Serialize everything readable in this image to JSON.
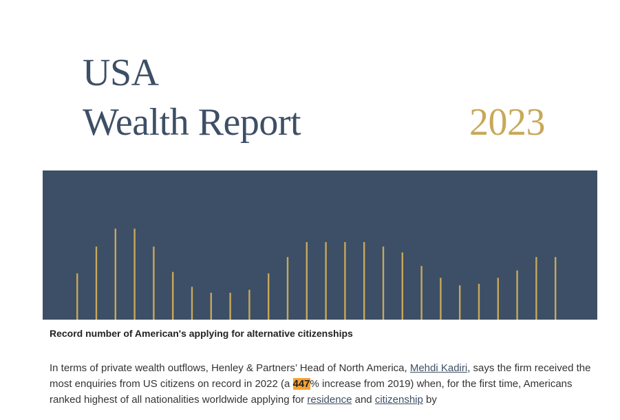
{
  "header": {
    "title_line1": "USA",
    "title_line2": "Wealth Report",
    "year": "2023"
  },
  "colors": {
    "navy": "#3d4f66",
    "gold": "#c8a85a",
    "highlight": "#f4a233"
  },
  "banner": {
    "bar_levels": [
      0.31,
      0.49,
      0.61,
      0.61,
      0.49,
      0.32,
      0.22,
      0.18,
      0.18,
      0.2,
      0.31,
      0.42,
      0.52,
      0.52,
      0.52,
      0.52,
      0.49,
      0.45,
      0.36,
      0.28,
      0.23,
      0.24,
      0.28,
      0.33,
      0.42,
      0.42
    ]
  },
  "article": {
    "caption": "Record number of American's applying for alternative citizenships",
    "p_intro": "In terms of private wealth outflows, Henley & Partners’ Head of North America, ",
    "link_person": "Mehdi Kadiri",
    "p_mid1": ", says the firm received the most enquiries from US citizens on record in 2022 (a ",
    "highlight_value": "447",
    "p_mid2": "% increase from 2019) when, for the first time, Americans ranked highest of all nationalities worldwide applying for ",
    "link_residence": "residence",
    "p_and": " and ",
    "link_citizenship": "citizenship",
    "p_end": " by"
  }
}
